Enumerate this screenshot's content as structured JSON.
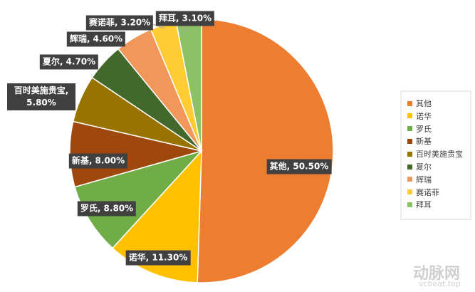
{
  "chart_data": {
    "type": "pie",
    "categories": [
      "其他",
      "诺华",
      "罗氏",
      "新基",
      "百时美施贵宝",
      "夏尔",
      "辉瑞",
      "赛诺菲",
      "拜耳"
    ],
    "values": [
      50.5,
      11.3,
      8.8,
      8.0,
      5.8,
      4.7,
      4.6,
      3.2,
      3.1
    ],
    "value_labels": [
      "其他, 50.50%",
      "诺华, 11.30%",
      "罗氏, 8.80%",
      "新基, 8.00%",
      "百时美施贵宝, 5.80%",
      "夏尔, 4.70%",
      "辉瑞, 4.60%",
      "赛诺菲, 3.20%",
      "拜耳, 3.10%"
    ],
    "colors": [
      "#ed7d31",
      "#ffc000",
      "#70ad47",
      "#9e480e",
      "#997300",
      "#43682b",
      "#f1975a",
      "#ffcd33",
      "#8cc168"
    ],
    "legend": "right",
    "watermark": [
      "动脉网",
      "vcbeat.top"
    ]
  }
}
